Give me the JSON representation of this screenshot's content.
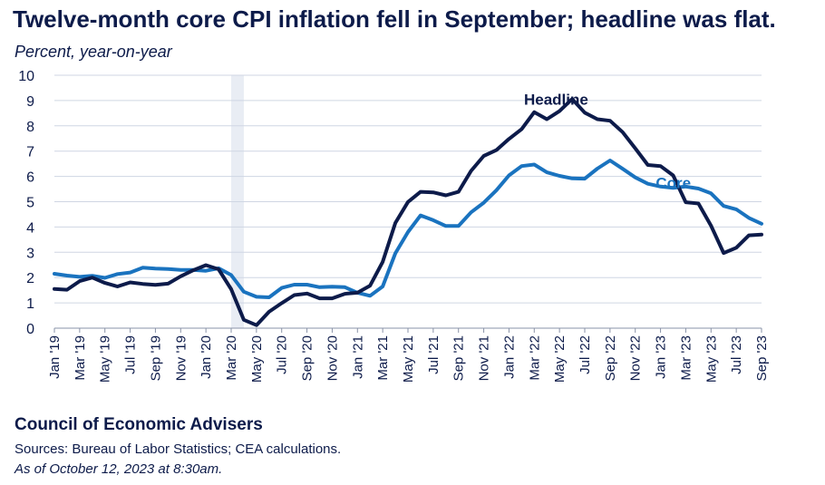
{
  "header": {
    "title": "Twelve-month core CPI inflation fell in September; headline was flat.",
    "subtitle": "Percent, year-on-year"
  },
  "footer": {
    "organization": "Council of Economic Advisers",
    "sources": "Sources: Bureau of Labor Statistics; CEA calculations.",
    "as_of": "As of October 12, 2023 at 8:30am."
  },
  "colors": {
    "headline": "#0d1b4a",
    "core": "#1a73bf",
    "recession_shading": "#e9edf4",
    "grid": "#cfd6e3",
    "text": "#0d1b4a"
  },
  "chart_data": {
    "type": "line",
    "title": "Twelve-month core CPI inflation fell in September; headline was flat.",
    "ylabel": "Percent, year-on-year",
    "ylim": [
      0,
      10
    ],
    "yticks": [
      0,
      1,
      2,
      3,
      4,
      5,
      6,
      7,
      8,
      9,
      10
    ],
    "grid": true,
    "x_tick_labels": [
      "Jan '19",
      "Mar '19",
      "May '19",
      "Jul '19",
      "Sep '19",
      "Nov '19",
      "Jan '20",
      "Mar '20",
      "May '20",
      "Jul '20",
      "Sep '20",
      "Nov '20",
      "Jan '21",
      "Mar '21",
      "May '21",
      "Jul '21",
      "Sep '21",
      "Nov '21",
      "Jan '22",
      "Mar '22",
      "May '22",
      "Jul '22",
      "Sep '22",
      "Nov '22",
      "Jan '23",
      "Mar '23",
      "May '23",
      "Jul '23",
      "Sep '23"
    ],
    "shaded_period": {
      "start": "Mar '20",
      "end": "Apr '20"
    },
    "series": [
      {
        "name": "Headline",
        "values": [
          1.55,
          1.52,
          1.86,
          2.0,
          1.79,
          1.65,
          1.81,
          1.75,
          1.71,
          1.76,
          2.05,
          2.29,
          2.49,
          2.33,
          1.54,
          0.33,
          0.12,
          0.65,
          0.99,
          1.31,
          1.37,
          1.18,
          1.18,
          1.36,
          1.4,
          1.68,
          2.62,
          4.16,
          4.99,
          5.39,
          5.37,
          5.25,
          5.39,
          6.22,
          6.81,
          7.04,
          7.48,
          7.87,
          8.54,
          8.26,
          8.58,
          9.06,
          8.52,
          8.26,
          8.2,
          7.75,
          7.11,
          6.45,
          6.41,
          6.04,
          4.98,
          4.93,
          4.05,
          2.97,
          3.18,
          3.67,
          3.7
        ]
      },
      {
        "name": "Core",
        "values": [
          2.15,
          2.08,
          2.03,
          2.07,
          1.99,
          2.14,
          2.2,
          2.39,
          2.36,
          2.34,
          2.3,
          2.3,
          2.27,
          2.37,
          2.1,
          1.44,
          1.24,
          1.22,
          1.59,
          1.72,
          1.72,
          1.62,
          1.64,
          1.62,
          1.4,
          1.28,
          1.65,
          2.96,
          3.8,
          4.46,
          4.27,
          4.04,
          4.04,
          4.58,
          4.96,
          5.45,
          6.04,
          6.41,
          6.47,
          6.16,
          6.02,
          5.92,
          5.91,
          6.31,
          6.63,
          6.3,
          5.96,
          5.71,
          5.6,
          5.55,
          5.6,
          5.52,
          5.33,
          4.83,
          4.7,
          4.36,
          4.13
        ]
      }
    ],
    "annotations": [
      {
        "text": "Headline",
        "series": "Headline"
      },
      {
        "text": "Core",
        "series": "Core"
      }
    ]
  }
}
